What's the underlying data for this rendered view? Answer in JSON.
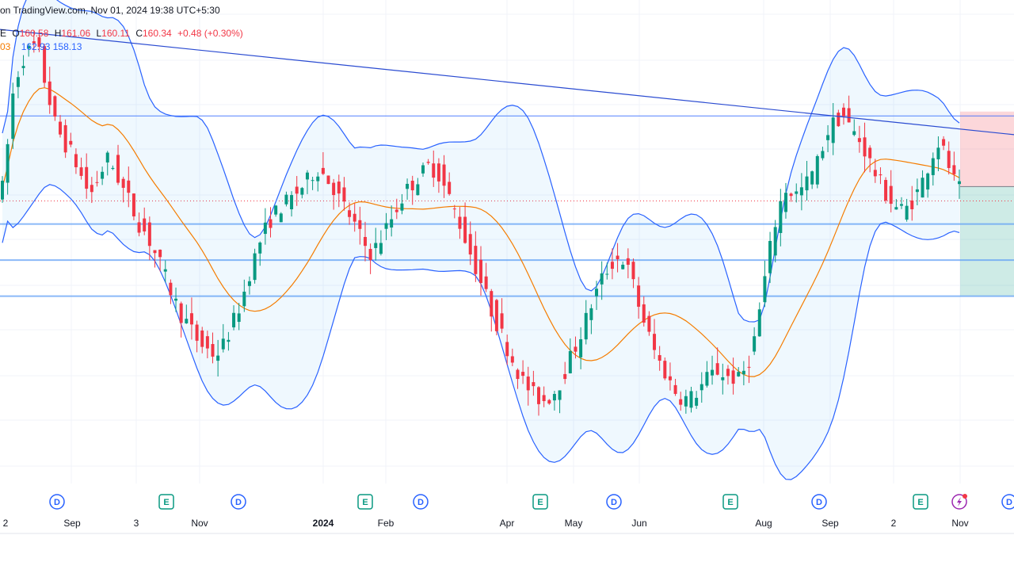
{
  "header": {
    "source_text": "on TradingView.com, Nov 01, 2024 19:38 UTC+5:30"
  },
  "ohlc": {
    "prefix": "E",
    "open_label": "O",
    "open": "160.58",
    "high_label": "H",
    "high": "161.06",
    "low_label": "L",
    "low": "160.11",
    "close_label": "C",
    "close": "160.34",
    "change": "+0.48 (+0.30%)"
  },
  "indicators": {
    "ma_value_partial": "03",
    "bb_upper_partial": "162.93",
    "bb_lower": "158.13"
  },
  "colors": {
    "up": "#089981",
    "down": "#f23645",
    "bands": "#2962ff",
    "basis": "#f57c00",
    "fill": "rgba(33,150,243,0.07)",
    "stop_zone": "rgba(242,54,69,0.2)",
    "target_zone": "rgba(8,153,129,0.2)"
  },
  "event_markers": [
    {
      "type": "D",
      "x_label": "Aug-early"
    },
    {
      "type": "E",
      "x_label": "Oct"
    },
    {
      "type": "D",
      "x_label": "Nov"
    },
    {
      "type": "E",
      "x_label": "Jan"
    },
    {
      "type": "D",
      "x_label": "Feb"
    },
    {
      "type": "E",
      "x_label": "Apr"
    },
    {
      "type": "D",
      "x_label": "May"
    },
    {
      "type": "E",
      "x_label": "Jul"
    },
    {
      "type": "D",
      "x_label": "Aug"
    },
    {
      "type": "E",
      "x_label": "Oct"
    },
    {
      "type": "flash",
      "x_label": "Nov"
    },
    {
      "type": "D",
      "x_label": "Nov+"
    }
  ],
  "chart_data": {
    "type": "candlestick",
    "x_tick_labels": [
      "2",
      "Sep",
      "3",
      "Nov",
      "2024",
      "Feb",
      "Apr",
      "May",
      "Jun",
      "Aug",
      "Sep",
      "2",
      "Nov"
    ],
    "bold_tick": "2024",
    "y_range": [
      140,
      172
    ],
    "horizontal_levels": [
      165.5,
      158.0,
      155.5,
      153.0
    ],
    "dotted_level": 159.6,
    "trendline": {
      "from": [
        0,
        171.5
      ],
      "to": [
        1,
        164.2
      ]
    },
    "series": [
      {
        "name": "",
        "close": [
          160.5,
          163.5,
          167.0,
          168.5,
          169.5,
          170.0,
          170.3,
          169.8,
          168.0,
          166.5,
          165.0,
          164.2,
          163.5,
          163.0,
          162.2,
          161.3,
          160.5,
          160.2,
          161.0,
          161.8,
          162.5,
          162.0,
          161.2,
          160.4,
          159.7,
          158.8,
          158.0,
          157.5,
          156.8,
          156.0,
          155.2,
          154.3,
          153.4,
          152.5,
          151.7,
          151.2,
          150.6,
          150.0,
          149.6,
          149.3,
          149.0,
          149.1,
          149.6,
          150.4,
          151.3,
          152.2,
          153.3,
          154.6,
          155.7,
          156.8,
          157.6,
          158.3,
          158.8,
          159.2,
          159.5,
          159.8,
          160.2,
          160.6,
          161.0,
          161.5,
          161.8,
          161.5,
          161.0,
          160.5,
          159.8,
          159.2,
          158.6,
          157.9,
          157.2,
          156.5,
          156.0,
          156.4,
          157.0,
          157.7,
          158.4,
          159.1,
          159.8,
          160.4,
          160.8,
          161.2,
          161.6,
          162.0,
          161.8,
          161.4,
          160.6,
          159.8,
          158.9,
          158.0,
          157.0,
          156.0,
          155.0,
          154.0,
          153.0,
          152.0,
          151.1,
          150.3,
          149.4,
          148.6,
          147.8,
          147.1,
          146.6,
          146.2,
          145.9,
          145.8,
          146.0,
          146.4,
          147.0,
          147.8,
          148.7,
          149.5,
          150.4,
          151.4,
          152.4,
          153.3,
          154.2,
          154.8,
          155.3,
          155.6,
          155.5,
          154.8,
          153.8,
          152.4,
          151.3,
          150.2,
          149.2,
          148.4,
          147.7,
          147.0,
          146.4,
          146.0,
          145.9,
          146.0,
          146.3,
          146.8,
          147.3,
          147.6,
          147.8,
          147.6,
          147.4,
          147.3,
          147.2,
          147.8,
          148.6,
          150.0,
          152.0,
          154.2,
          156.3,
          158.1,
          159.5,
          160.4,
          160.2,
          160.1,
          160.4,
          160.9,
          161.5,
          162.3,
          163.4,
          164.4,
          165.0,
          165.3,
          165.5,
          164.8,
          164.3,
          163.8,
          163.1,
          162.3,
          161.5,
          160.8,
          160.1,
          159.6,
          159.2,
          159.0,
          159.1,
          159.6,
          160.2,
          161.0,
          162.0,
          162.9,
          163.6,
          163.0,
          162.0,
          161.0,
          160.4
        ],
        "bands": "bollinger(20,2)"
      }
    ],
    "position_tool": {
      "entry": 160.6,
      "stop": 165.8,
      "target": 153.0
    }
  }
}
